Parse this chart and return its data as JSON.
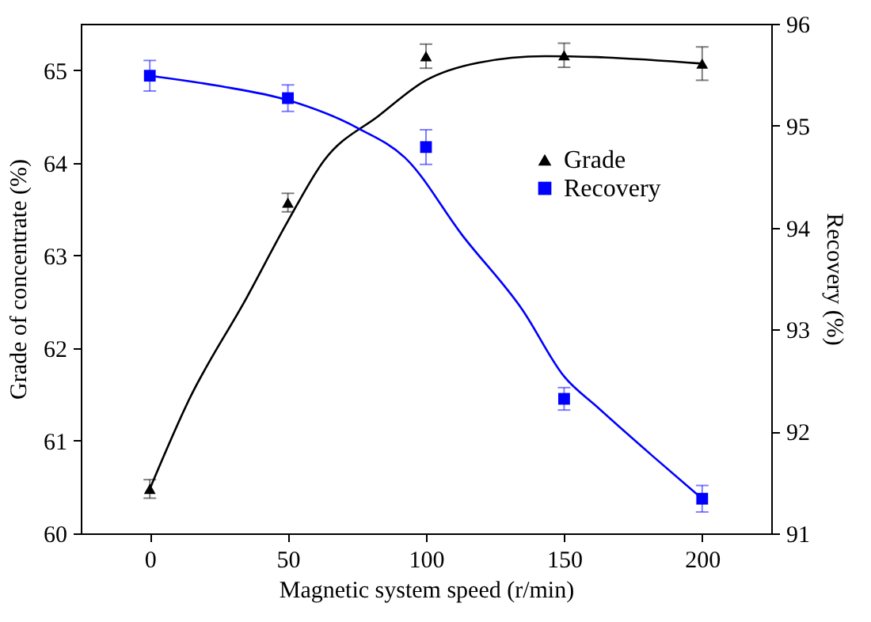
{
  "chart_data": {
    "type": "scatter",
    "xlabel": "Magnetic system speed (r/min)",
    "ylabel": "Grade of concentrate (%)",
    "y2label": "Recovery (%)",
    "x": [
      0,
      50,
      100,
      150,
      200
    ],
    "xlim": [
      -25,
      225
    ],
    "xticks": [
      0,
      50,
      100,
      150,
      200
    ],
    "ylim": [
      60,
      65.5
    ],
    "yticks": [
      60,
      61,
      62,
      63,
      64,
      65
    ],
    "y2lim": [
      91,
      96
    ],
    "y2ticks": [
      91,
      92,
      93,
      94,
      95,
      96
    ],
    "legend": "top right",
    "series": [
      {
        "name": "Grade",
        "marker": "triangle",
        "color": "#000000",
        "values": [
          60.48,
          63.57,
          65.15,
          65.16,
          65.07
        ],
        "errors": [
          0.1,
          0.1,
          0.13,
          0.13,
          0.18
        ]
      },
      {
        "type": "line",
        "color": "#000000",
        "x": [
          0,
          14,
          35,
          50,
          63,
          83,
          100,
          119,
          143,
          162,
          200
        ],
        "values": [
          60.48,
          61.43,
          62.54,
          63.37,
          64.02,
          64.51,
          64.89,
          65.08,
          65.15,
          65.14,
          65.07
        ]
      },
      {
        "name": "Recovery",
        "axis": "y2",
        "marker": "square",
        "color": "#0000ff",
        "values": [
          95.49,
          95.27,
          94.79,
          92.32,
          91.34
        ],
        "errors": [
          0.15,
          0.13,
          0.17,
          0.11,
          0.13
        ]
      },
      {
        "type": "line",
        "axis": "y2",
        "color": "#0000ff",
        "x": [
          0,
          25,
          50,
          75,
          93,
          113,
          135,
          150,
          162,
          182,
          200
        ],
        "values": [
          95.49,
          95.39,
          95.25,
          94.98,
          94.67,
          93.93,
          93.19,
          92.54,
          92.24,
          91.76,
          91.34
        ]
      }
    ]
  }
}
